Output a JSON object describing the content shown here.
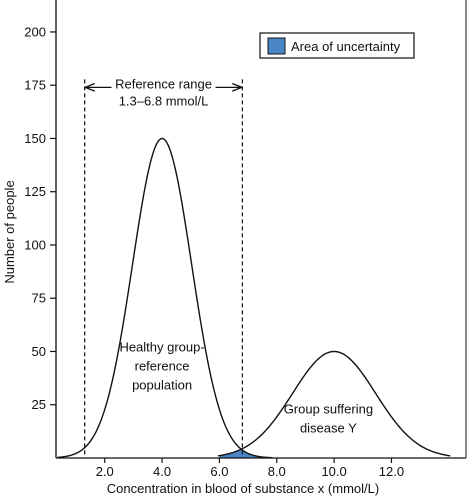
{
  "chart_data": {
    "type": "line",
    "xlabel": "Concentration in blood of substance x (mmol/L)",
    "ylabel": "Number of people",
    "xlim": [
      0.3,
      14.6
    ],
    "ylim": [
      0,
      215
    ],
    "x_ticks": [
      {
        "value": 2,
        "label": "2.0"
      },
      {
        "value": 4,
        "label": "4.0"
      },
      {
        "value": 6,
        "label": "6.0"
      },
      {
        "value": 8,
        "label": "8.0"
      },
      {
        "value": 10,
        "label": "10.0"
      },
      {
        "value": 12,
        "label": "12.0"
      }
    ],
    "y_ticks": [
      {
        "value": 25,
        "label": "25"
      },
      {
        "value": 50,
        "label": "50"
      },
      {
        "value": 75,
        "label": "75"
      },
      {
        "value": 100,
        "label": "100"
      },
      {
        "value": 125,
        "label": "125"
      },
      {
        "value": 150,
        "label": "150"
      },
      {
        "value": 175,
        "label": "175"
      },
      {
        "value": 200,
        "label": "200"
      }
    ],
    "series": [
      {
        "name": "",
        "label_lines": [
          "Healthy group-",
          "reference",
          "population"
        ],
        "label_pos": [
          4.0,
          50
        ],
        "mean": 4.0,
        "peak": 150,
        "sd": 1.03,
        "x_range": [
          0.35,
          7.85
        ]
      },
      {
        "name": "",
        "label_lines": [
          "Group suffering",
          "disease Y"
        ],
        "label_pos": [
          9.8,
          21
        ],
        "mean": 10.0,
        "peak": 50,
        "sd": 1.45,
        "x_range": [
          5.95,
          14.05
        ]
      }
    ],
    "reference_range": {
      "lines": [
        "Reference range",
        "1.3–6.8 mmol/L"
      ],
      "low": 1.3,
      "high": 6.8,
      "arrow_y": 174
    },
    "uncertainty_area": {
      "x_range": [
        6.0,
        8.05
      ],
      "color": "#4a86c6"
    },
    "legend": {
      "label": "Area of uncertainty",
      "color": "#4a86c6",
      "position": "top-right"
    }
  }
}
